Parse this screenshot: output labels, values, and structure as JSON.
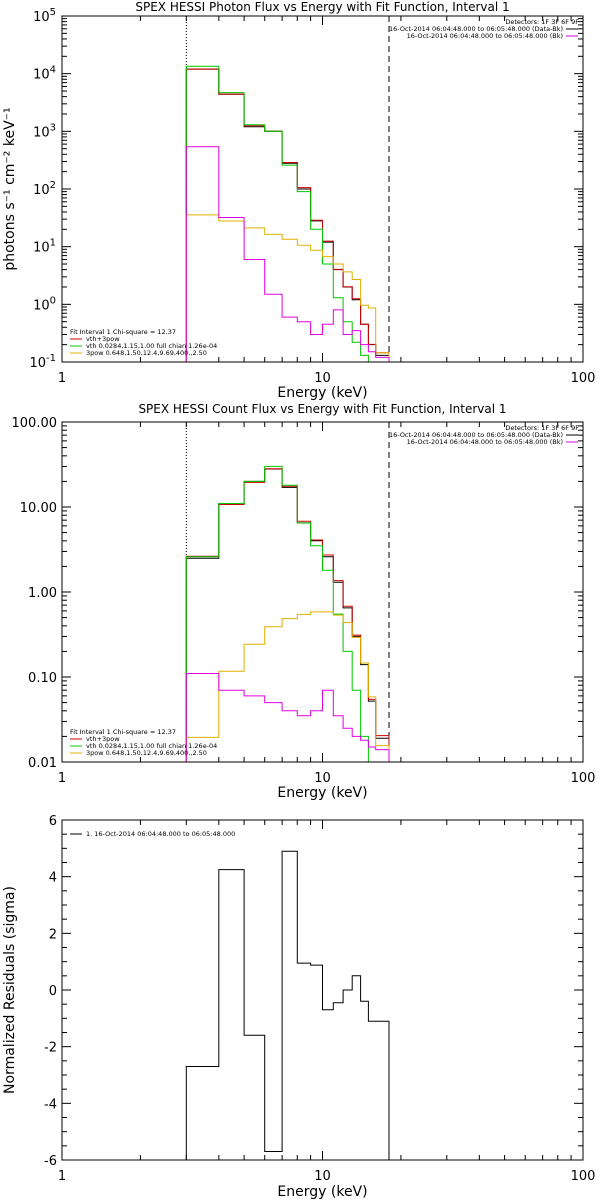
{
  "chart_data": [
    {
      "type": "line",
      "title": "SPEX HESSI Photon Flux vs Energy with Fit Function, Interval 1",
      "xlabel": "Energy (keV)",
      "ylabel": "photons s⁻¹ cm⁻² keV⁻¹",
      "xscale": "log",
      "yscale": "log",
      "xlim": [
        1,
        100
      ],
      "ylim": [
        0.1,
        100000
      ],
      "xticks": [
        "1",
        "10",
        "100"
      ],
      "yticks": [
        {
          "value": 0.1,
          "base": "10",
          "exp": "-1"
        },
        {
          "value": 1,
          "base": "10",
          "exp": "0"
        },
        {
          "value": 10,
          "base": "10",
          "exp": "1"
        },
        {
          "value": 100,
          "base": "10",
          "exp": "2"
        },
        {
          "value": 1000,
          "base": "10",
          "exp": "3"
        },
        {
          "value": 10000,
          "base": "10",
          "exp": "4"
        },
        {
          "value": 100000,
          "base": "10",
          "exp": "5"
        }
      ],
      "vlines": [
        {
          "x": 3.0,
          "style": "dotted"
        },
        {
          "x": 18.0,
          "style": "dashed"
        }
      ],
      "bin_edges": [
        3.0,
        4.0,
        5.0,
        6.0,
        7.0,
        8.0,
        9.0,
        10.0,
        11.0,
        12.0,
        13.0,
        14.0,
        15.0,
        16.0,
        18.0
      ],
      "series": [
        {
          "name": "data",
          "color": "#000000",
          "values": [
            12000,
            4400,
            1200,
            1000,
            280,
            100,
            28,
            12,
            4.0,
            2.0,
            1.2,
            0.45,
            0.2,
            0.13
          ]
        },
        {
          "name": "vth+3pow",
          "color": "#d00000",
          "values": [
            12500,
            4600,
            1300,
            1050,
            300,
            110,
            30,
            13,
            4.2,
            2.1,
            1.3,
            0.47,
            0.21,
            0.15
          ]
        },
        {
          "name": "vth",
          "color": "#00c800",
          "values": [
            13500,
            4700,
            1300,
            1000,
            260,
            90,
            20,
            5.0,
            1.3,
            0.5,
            0.22,
            0.13,
            0.1,
            0.07
          ]
        },
        {
          "name": "3pow",
          "color": "#e0b000",
          "values": [
            37,
            29,
            22,
            17,
            14,
            11,
            9,
            7.0,
            5.2,
            3.8,
            2.8,
            1.0,
            0.9,
            0.15
          ]
        },
        {
          "name": "bk",
          "color": "#e000e0",
          "values": [
            540,
            32,
            6.0,
            1.5,
            0.6,
            0.5,
            0.3,
            0.45,
            0.8,
            0.3,
            0.35,
            0.2,
            0.15,
            0.12
          ]
        }
      ],
      "legend_left": {
        "header": "Fit Interval  1    Chi-square = 12.37",
        "entries": [
          {
            "color": "#d00000",
            "text": "vth+3pow"
          },
          {
            "color": "#00c800",
            "text": "vth 0.0284,1.15,1.00  full chian 1.26e-04"
          },
          {
            "color": "#e0b000",
            "text": "3pow 0.648,1.50,12.4,9.69,400.,2.50"
          }
        ]
      },
      "legend_right": {
        "header": "Detectors: 1F 3F 6F 9F",
        "entries": [
          {
            "color": "#000000",
            "text": "16-Oct-2014 06:04:48.000 to 06:05:48.000 (Data-Bk)"
          },
          {
            "color": "#e000e0",
            "text": "16-Oct-2014 06:04:48.000 to 06:05:48.000 (Bk)"
          }
        ]
      }
    },
    {
      "type": "line",
      "title": "SPEX HESSI Count Flux vs Energy with Fit Function, Interval 1",
      "xlabel": "Energy (keV)",
      "ylabel": "",
      "xscale": "log",
      "yscale": "log",
      "xlim": [
        1,
        100
      ],
      "ylim": [
        0.01,
        100
      ],
      "xticks": [
        "1",
        "10",
        "100"
      ],
      "yticks": [
        {
          "value": 0.01,
          "text": "0.01"
        },
        {
          "value": 0.1,
          "text": "0.10"
        },
        {
          "value": 1,
          "text": "1.00"
        },
        {
          "value": 10,
          "text": "10.00"
        },
        {
          "value": 100,
          "text": "100.00"
        }
      ],
      "vlines": [
        {
          "x": 3.0,
          "style": "dotted"
        },
        {
          "x": 18.0,
          "style": "dashed"
        }
      ],
      "bin_edges": [
        3.0,
        4.0,
        5.0,
        6.0,
        7.0,
        8.0,
        9.0,
        10.0,
        11.0,
        12.0,
        13.0,
        14.0,
        15.0,
        16.0,
        18.0
      ],
      "series": [
        {
          "name": "data",
          "color": "#000000",
          "values": [
            2.5,
            11,
            20,
            28,
            17,
            6.5,
            4.0,
            2.6,
            1.3,
            0.65,
            0.3,
            0.14,
            0.052,
            0.019
          ]
        },
        {
          "name": "vth+3pow",
          "color": "#d00000",
          "values": [
            2.7,
            11,
            20,
            29,
            18,
            7.0,
            4.2,
            2.8,
            1.4,
            0.7,
            0.32,
            0.15,
            0.056,
            0.021
          ]
        },
        {
          "name": "vth",
          "color": "#00c800",
          "values": [
            2.6,
            11,
            20,
            30,
            18,
            6.5,
            3.5,
            1.8,
            0.55,
            0.2,
            0.07,
            0.02,
            0.009,
            0.008
          ]
        },
        {
          "name": "3pow",
          "color": "#e0b000",
          "values": [
            0.02,
            0.12,
            0.25,
            0.4,
            0.5,
            0.56,
            0.6,
            0.6,
            0.55,
            0.45,
            0.3,
            0.15,
            0.06,
            0.016
          ]
        },
        {
          "name": "bk",
          "color": "#e000e0",
          "values": [
            0.11,
            0.07,
            0.06,
            0.05,
            0.04,
            0.035,
            0.04,
            0.07,
            0.035,
            0.025,
            0.02,
            0.018,
            0.015,
            0.014
          ]
        }
      ],
      "legend_left": {
        "header": "Fit Interval  1    Chi-square = 12.37",
        "entries": [
          {
            "color": "#d00000",
            "text": "vth+3pow"
          },
          {
            "color": "#00c800",
            "text": "vth 0.0284,1.15,1.00  full chian 1.26e-04"
          },
          {
            "color": "#e0b000",
            "text": "3pow 0.648,1.50,12.4,9.69,400.,2.50"
          }
        ]
      },
      "legend_right": {
        "header": "Detectors: 1F 3F 6F 9F",
        "entries": [
          {
            "color": "#000000",
            "text": "16-Oct-2014 06:04:48.000 to 06:05:48.000 (Data-Bk)"
          },
          {
            "color": "#e000e0",
            "text": "16-Oct-2014 06:04:48.000 to 06:05:48.000 (Bk)"
          }
        ]
      }
    },
    {
      "type": "line",
      "title": "",
      "xlabel": "Energy (keV)",
      "ylabel": "Normalized Residuals (sigma)",
      "xscale": "log",
      "yscale": "linear",
      "xlim": [
        1,
        100
      ],
      "ylim": [
        -6,
        6
      ],
      "xticks": [
        "1",
        "10",
        "100"
      ],
      "yticks": [
        {
          "value": -6,
          "text": "-6"
        },
        {
          "value": -4,
          "text": "-4"
        },
        {
          "value": -2,
          "text": "-2"
        },
        {
          "value": 0,
          "text": "0"
        },
        {
          "value": 2,
          "text": "2"
        },
        {
          "value": 4,
          "text": "4"
        },
        {
          "value": 6,
          "text": "6"
        }
      ],
      "vlines": [],
      "bin_edges": [
        3.0,
        4.0,
        5.0,
        6.0,
        7.0,
        8.0,
        9.0,
        10.0,
        11.0,
        12.0,
        13.0,
        14.0,
        15.0,
        16.0,
        18.0
      ],
      "series": [
        {
          "name": "1. 16-Oct-2014 06:04:48.000 to 06:05:48.000",
          "color": "#000000",
          "values": [
            -2.7,
            4.25,
            -1.6,
            -5.7,
            4.9,
            0.95,
            0.88,
            -0.7,
            -0.45,
            0.0,
            0.5,
            -0.4,
            -1.1,
            -1.1
          ]
        }
      ],
      "legend_left": {
        "header": "",
        "entries": [
          {
            "color": "#000000",
            "text": "1. 16-Oct-2014 06:04:48.000 to 06:05:48.000"
          }
        ]
      },
      "legend_right": null
    }
  ]
}
